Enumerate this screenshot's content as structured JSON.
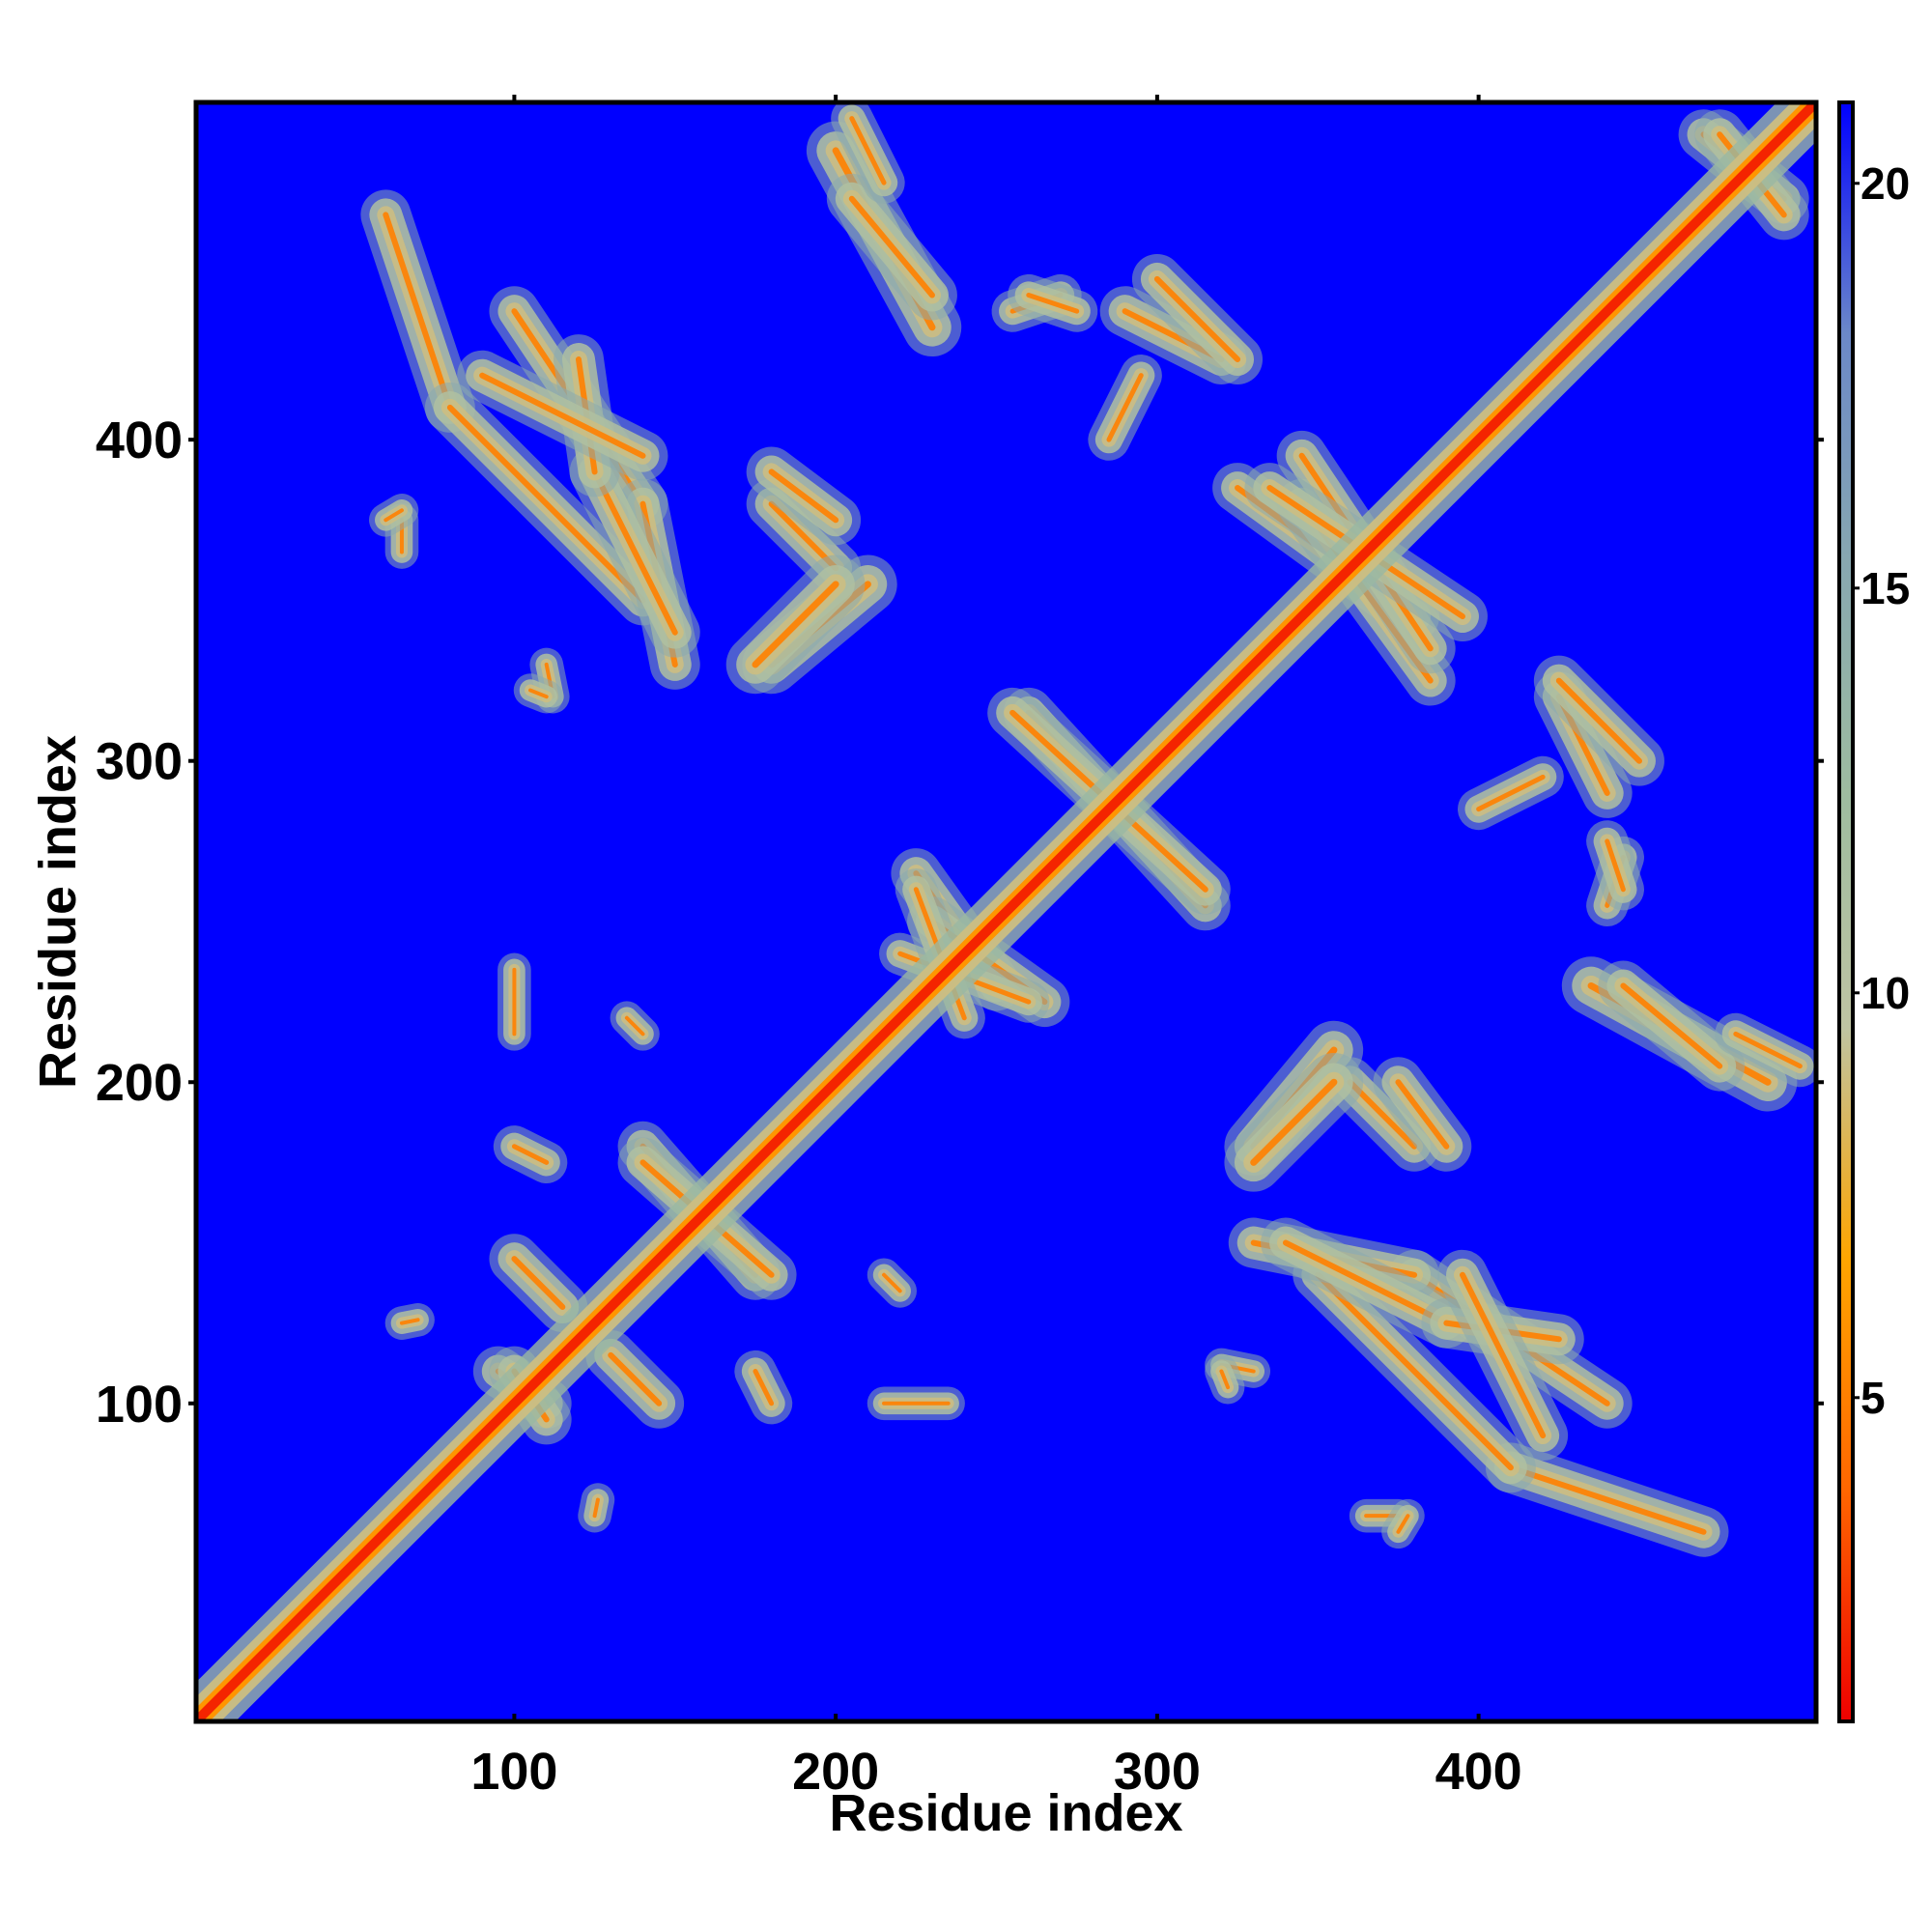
{
  "chart_data": {
    "type": "heatmap",
    "title": "",
    "xlabel": "Residue index",
    "ylabel": "Residue index",
    "xlim": [
      1,
      505
    ],
    "ylim": [
      1,
      505
    ],
    "x_ticks": [
      100,
      200,
      300,
      400
    ],
    "y_ticks": [
      100,
      200,
      300,
      400
    ],
    "colorbar": {
      "range": [
        1,
        21
      ],
      "ticks": [
        5,
        10,
        15,
        20
      ],
      "colors": [
        "#ee0000",
        "#ff6600",
        "#ffa500",
        "#bfc4a2",
        "#9ebca0",
        "#88a8b0",
        "#6b88c8",
        "#0000ff"
      ]
    },
    "background_value": 21,
    "diagonal": {
      "core_value": 2,
      "half_width": 6
    },
    "contact_regions": [
      {
        "from": [
          60,
          470
        ],
        "to": [
          80,
          410
        ],
        "width": 6
      },
      {
        "from": [
          80,
          410
        ],
        "to": [
          140,
          350
        ],
        "width": 6
      },
      {
        "from": [
          100,
          440
        ],
        "to": [
          140,
          380
        ],
        "width": 6
      },
      {
        "from": [
          140,
          380
        ],
        "to": [
          150,
          330
        ],
        "width": 6
      },
      {
        "from": [
          65,
          375
        ],
        "to": [
          65,
          365
        ],
        "width": 4
      },
      {
        "from": [
          110,
          330
        ],
        "to": [
          112,
          320
        ],
        "width": 4
      },
      {
        "from": [
          180,
          380
        ],
        "to": [
          200,
          360
        ],
        "width": 6
      },
      {
        "from": [
          180,
          330
        ],
        "to": [
          210,
          355
        ],
        "width": 7
      },
      {
        "from": [
          200,
          490
        ],
        "to": [
          230,
          435
        ],
        "width": 7
      },
      {
        "from": [
          255,
          440
        ],
        "to": [
          270,
          445
        ],
        "width": 5
      },
      {
        "from": [
          290,
          440
        ],
        "to": [
          320,
          425
        ],
        "width": 6
      },
      {
        "from": [
          285,
          400
        ],
        "to": [
          295,
          420
        ],
        "width": 5
      },
      {
        "from": [
          260,
          315
        ],
        "to": [
          315,
          255
        ],
        "width": 6
      },
      {
        "from": [
          325,
          385
        ],
        "to": [
          380,
          345
        ],
        "width": 6
      },
      {
        "from": [
          345,
          395
        ],
        "to": [
          385,
          335
        ],
        "width": 6
      },
      {
        "from": [
          470,
          495
        ],
        "to": [
          495,
          475
        ],
        "width": 6
      },
      {
        "from": [
          425,
          325
        ],
        "to": [
          450,
          300
        ],
        "width": 6
      },
      {
        "from": [
          440,
          275
        ],
        "to": [
          445,
          260
        ],
        "width": 5
      },
      {
        "from": [
          445,
          230
        ],
        "to": [
          475,
          205
        ],
        "width": 6
      },
      {
        "from": [
          480,
          215
        ],
        "to": [
          500,
          205
        ],
        "width": 5
      },
      {
        "from": [
          330,
          175
        ],
        "to": [
          355,
          200
        ],
        "width": 7
      },
      {
        "from": [
          375,
          200
        ],
        "to": [
          390,
          180
        ],
        "width": 6
      },
      {
        "from": [
          340,
          150
        ],
        "to": [
          390,
          125
        ],
        "width": 6
      },
      {
        "from": [
          390,
          125
        ],
        "to": [
          425,
          120
        ],
        "width": 6
      },
      {
        "from": [
          395,
          140
        ],
        "to": [
          420,
          90
        ],
        "width": 6
      },
      {
        "from": [
          95,
          110
        ],
        "to": [
          110,
          100
        ],
        "width": 6
      },
      {
        "from": [
          100,
          145
        ],
        "to": [
          115,
          130
        ],
        "width": 6
      },
      {
        "from": [
          140,
          180
        ],
        "to": [
          175,
          140
        ],
        "width": 6
      },
      {
        "from": [
          125,
          65
        ],
        "to": [
          126,
          70
        ],
        "width": 4
      },
      {
        "from": [
          225,
          265
        ],
        "to": [
          250,
          230
        ],
        "width": 6
      },
      {
        "from": [
          220,
          240
        ],
        "to": [
          260,
          225
        ],
        "width": 5
      },
      {
        "from": [
          175,
          110
        ],
        "to": [
          180,
          100
        ],
        "width": 5
      },
      {
        "from": [
          215,
          140
        ],
        "to": [
          220,
          135
        ],
        "width": 4
      },
      {
        "from": [
          215,
          100
        ],
        "to": [
          235,
          100
        ],
        "width": 4
      },
      {
        "from": [
          320,
          110
        ],
        "to": [
          322,
          105
        ],
        "width": 4
      },
      {
        "from": [
          375,
          60
        ],
        "to": [
          378,
          65
        ],
        "width": 4
      }
    ]
  }
}
